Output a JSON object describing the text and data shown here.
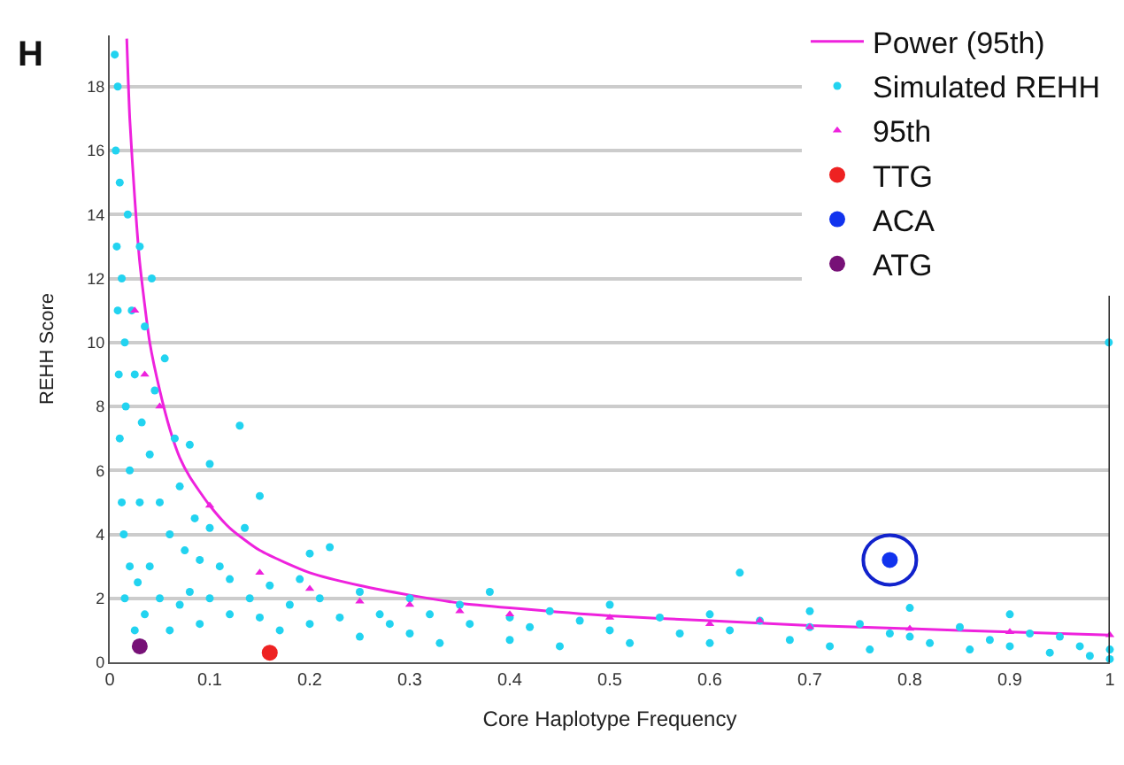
{
  "chart_data": {
    "type": "scatter",
    "xlabel": "Core Haplotype Frequency",
    "ylabel": "REHH Score",
    "annotations": [
      "H"
    ],
    "xlim": [
      0,
      1
    ],
    "xticks": [
      0,
      0.1,
      0.2,
      0.3,
      0.4,
      0.5,
      0.6,
      0.7,
      0.8,
      0.9,
      1
    ],
    "ylim": [
      0,
      19.6
    ],
    "yticks": [
      0,
      2,
      4,
      6,
      8,
      10,
      12,
      14,
      16,
      18
    ],
    "grid": "y",
    "legend": "top right",
    "marker": "circle",
    "series": [
      {
        "name": "Simulated REHH",
        "color": "#22d3f0",
        "x": [
          0.005,
          0.006,
          0.007,
          0.008,
          0.008,
          0.009,
          0.01,
          0.01,
          0.012,
          0.012,
          0.014,
          0.015,
          0.015,
          0.016,
          0.018,
          0.02,
          0.02,
          0.022,
          0.025,
          0.025,
          0.028,
          0.03,
          0.03,
          0.032,
          0.035,
          0.035,
          0.04,
          0.04,
          0.042,
          0.045,
          0.05,
          0.05,
          0.055,
          0.06,
          0.06,
          0.065,
          0.07,
          0.07,
          0.075,
          0.08,
          0.08,
          0.085,
          0.09,
          0.09,
          0.1,
          0.1,
          0.1,
          0.11,
          0.12,
          0.12,
          0.13,
          0.135,
          0.14,
          0.15,
          0.15,
          0.16,
          0.17,
          0.18,
          0.19,
          0.2,
          0.2,
          0.21,
          0.22,
          0.23,
          0.25,
          0.25,
          0.27,
          0.28,
          0.3,
          0.3,
          0.32,
          0.33,
          0.35,
          0.36,
          0.38,
          0.4,
          0.4,
          0.42,
          0.44,
          0.45,
          0.47,
          0.5,
          0.5,
          0.52,
          0.55,
          0.57,
          0.6,
          0.6,
          0.62,
          0.63,
          0.65,
          0.68,
          0.7,
          0.7,
          0.72,
          0.75,
          0.76,
          0.78,
          0.8,
          0.8,
          0.82,
          0.85,
          0.86,
          0.88,
          0.9,
          0.9,
          0.92,
          0.94,
          0.95,
          0.97,
          0.98,
          1.0,
          1.0,
          0.999
        ],
        "values": [
          19,
          16,
          13,
          11,
          18,
          9,
          7,
          15,
          5,
          12,
          4,
          10,
          2,
          8,
          14,
          3,
          6,
          11,
          1,
          9,
          2.5,
          13,
          5,
          7.5,
          1.5,
          10.5,
          3,
          6.5,
          12,
          8.5,
          2,
          5,
          9.5,
          1,
          4,
          7,
          1.8,
          5.5,
          3.5,
          2.2,
          6.8,
          4.5,
          1.2,
          3.2,
          2,
          4.2,
          6.2,
          3,
          1.5,
          2.6,
          7.4,
          4.2,
          2,
          1.4,
          5.2,
          2.4,
          1,
          1.8,
          2.6,
          1.2,
          3.4,
          2,
          3.6,
          1.4,
          0.8,
          2.2,
          1.5,
          1.2,
          0.9,
          2,
          1.5,
          0.6,
          1.8,
          1.2,
          2.2,
          0.7,
          1.4,
          1.1,
          1.6,
          0.5,
          1.3,
          1,
          1.8,
          0.6,
          1.4,
          0.9,
          0.6,
          1.5,
          1,
          2.8,
          1.3,
          0.7,
          1.6,
          1.1,
          0.5,
          1.2,
          0.4,
          0.9,
          0.8,
          1.7,
          0.6,
          1.1,
          0.4,
          0.7,
          1.5,
          0.5,
          0.9,
          0.3,
          0.8,
          0.5,
          0.2,
          0.4,
          0.1,
          10
        ]
      },
      {
        "name": "95th",
        "color": "#ee22dd",
        "marker": "triangle",
        "x": [
          0.025,
          0.035,
          0.05,
          0.1,
          0.15,
          0.2,
          0.25,
          0.3,
          0.35,
          0.4,
          0.5,
          0.6,
          0.65,
          0.7,
          0.8,
          0.9,
          1.0
        ],
        "values": [
          11,
          9,
          8,
          4.9,
          2.8,
          2.3,
          1.9,
          1.8,
          1.6,
          1.5,
          1.4,
          1.2,
          1.3,
          1.1,
          1.05,
          0.95,
          0.85
        ]
      },
      {
        "name": "TTG",
        "color": "#ee2222",
        "x": [
          0.16
        ],
        "values": [
          0.3
        ]
      },
      {
        "name": "ACA",
        "color": "#1133ee",
        "x": [
          0.78
        ],
        "values": [
          3.2
        ]
      },
      {
        "name": "ATG",
        "color": "#771177",
        "x": [
          0.03
        ],
        "values": [
          0.5
        ]
      },
      {
        "name": "Power (95th)",
        "type": "line",
        "marker": "none",
        "color": "#ee22dd",
        "line_style": "solid",
        "x": [
          0.017,
          0.02,
          0.025,
          0.03,
          0.04,
          0.05,
          0.06,
          0.07,
          0.08,
          0.1,
          0.12,
          0.15,
          0.2,
          0.25,
          0.3,
          0.35,
          0.4,
          0.5,
          0.6,
          0.7,
          0.8,
          0.9,
          1.0
        ],
        "values": [
          19.5,
          17,
          14.5,
          12.5,
          10,
          8.5,
          7.3,
          6.4,
          5.8,
          4.9,
          4.2,
          3.5,
          2.8,
          2.4,
          2.1,
          1.85,
          1.7,
          1.45,
          1.3,
          1.15,
          1.05,
          0.95,
          0.85
        ]
      }
    ]
  }
}
